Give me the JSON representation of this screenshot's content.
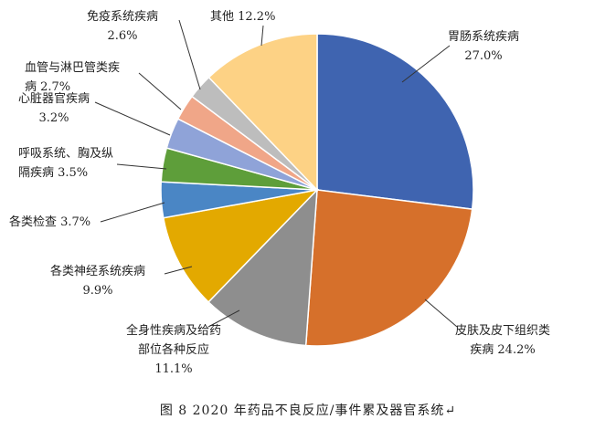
{
  "chart_data": {
    "type": "pie",
    "title": "",
    "start_angle": "12 o'clock",
    "direction": "clockwise",
    "slices": [
      {
        "label": "胃肠系统疾病",
        "value": 27.0,
        "value_label": "27.0%",
        "color": "#3F64B0"
      },
      {
        "label": "皮肤及皮下组织类疾病",
        "value": 24.2,
        "value_label": "24.2%",
        "color": "#D6702B"
      },
      {
        "label": "全身性疾病及给药部位各种反应",
        "value": 11.1,
        "value_label": "11.1%",
        "color": "#8E8E8E"
      },
      {
        "label": "各类神经系统疾病",
        "value": 9.9,
        "value_label": "9.9%",
        "color": "#E3A900"
      },
      {
        "label": "各类检查",
        "value": 3.7,
        "value_label": "3.7%",
        "color": "#4A86C5"
      },
      {
        "label": "呼吸系统、胸及纵隔疾病",
        "value": 3.5,
        "value_label": "3.5%",
        "color": "#5E9E3A"
      },
      {
        "label": "心脏器官疾病",
        "value": 3.2,
        "value_label": "3.2%",
        "color": "#8FA3D8"
      },
      {
        "label": "血管与淋巴管类疾病",
        "value": 2.7,
        "value_label": "2.7%",
        "color": "#F0A688"
      },
      {
        "label": "免疫系统疾病",
        "value": 2.6,
        "value_label": "2.6%",
        "color": "#BDBDBD"
      },
      {
        "label": "其他",
        "value": 12.2,
        "value_label": "12.2%",
        "color": "#FDD285"
      }
    ],
    "label_lines": [
      [
        "胃肠系统疾病",
        "27.0%"
      ],
      [
        "皮肤及皮下组织类",
        "疾病 24.2%"
      ],
      [
        "全身性疾病及给药",
        "部位各种反应",
        "11.1%"
      ],
      [
        "各类神经系统疾病",
        "9.9%"
      ],
      [
        "各类检查 3.7%"
      ],
      [
        "呼吸系统、胸及纵",
        "隔疾病 3.5%"
      ],
      [
        "心脏器官疾病",
        "3.2%"
      ],
      [
        "血管与淋巴管类疾",
        "病 2.7%"
      ],
      [
        "免疫系统疾病",
        "2.6%"
      ],
      [
        "其他 12.2%"
      ]
    ],
    "legend": "none"
  },
  "caption": "图 8   2020 年药品不良反应/事件累及器官系统↵"
}
